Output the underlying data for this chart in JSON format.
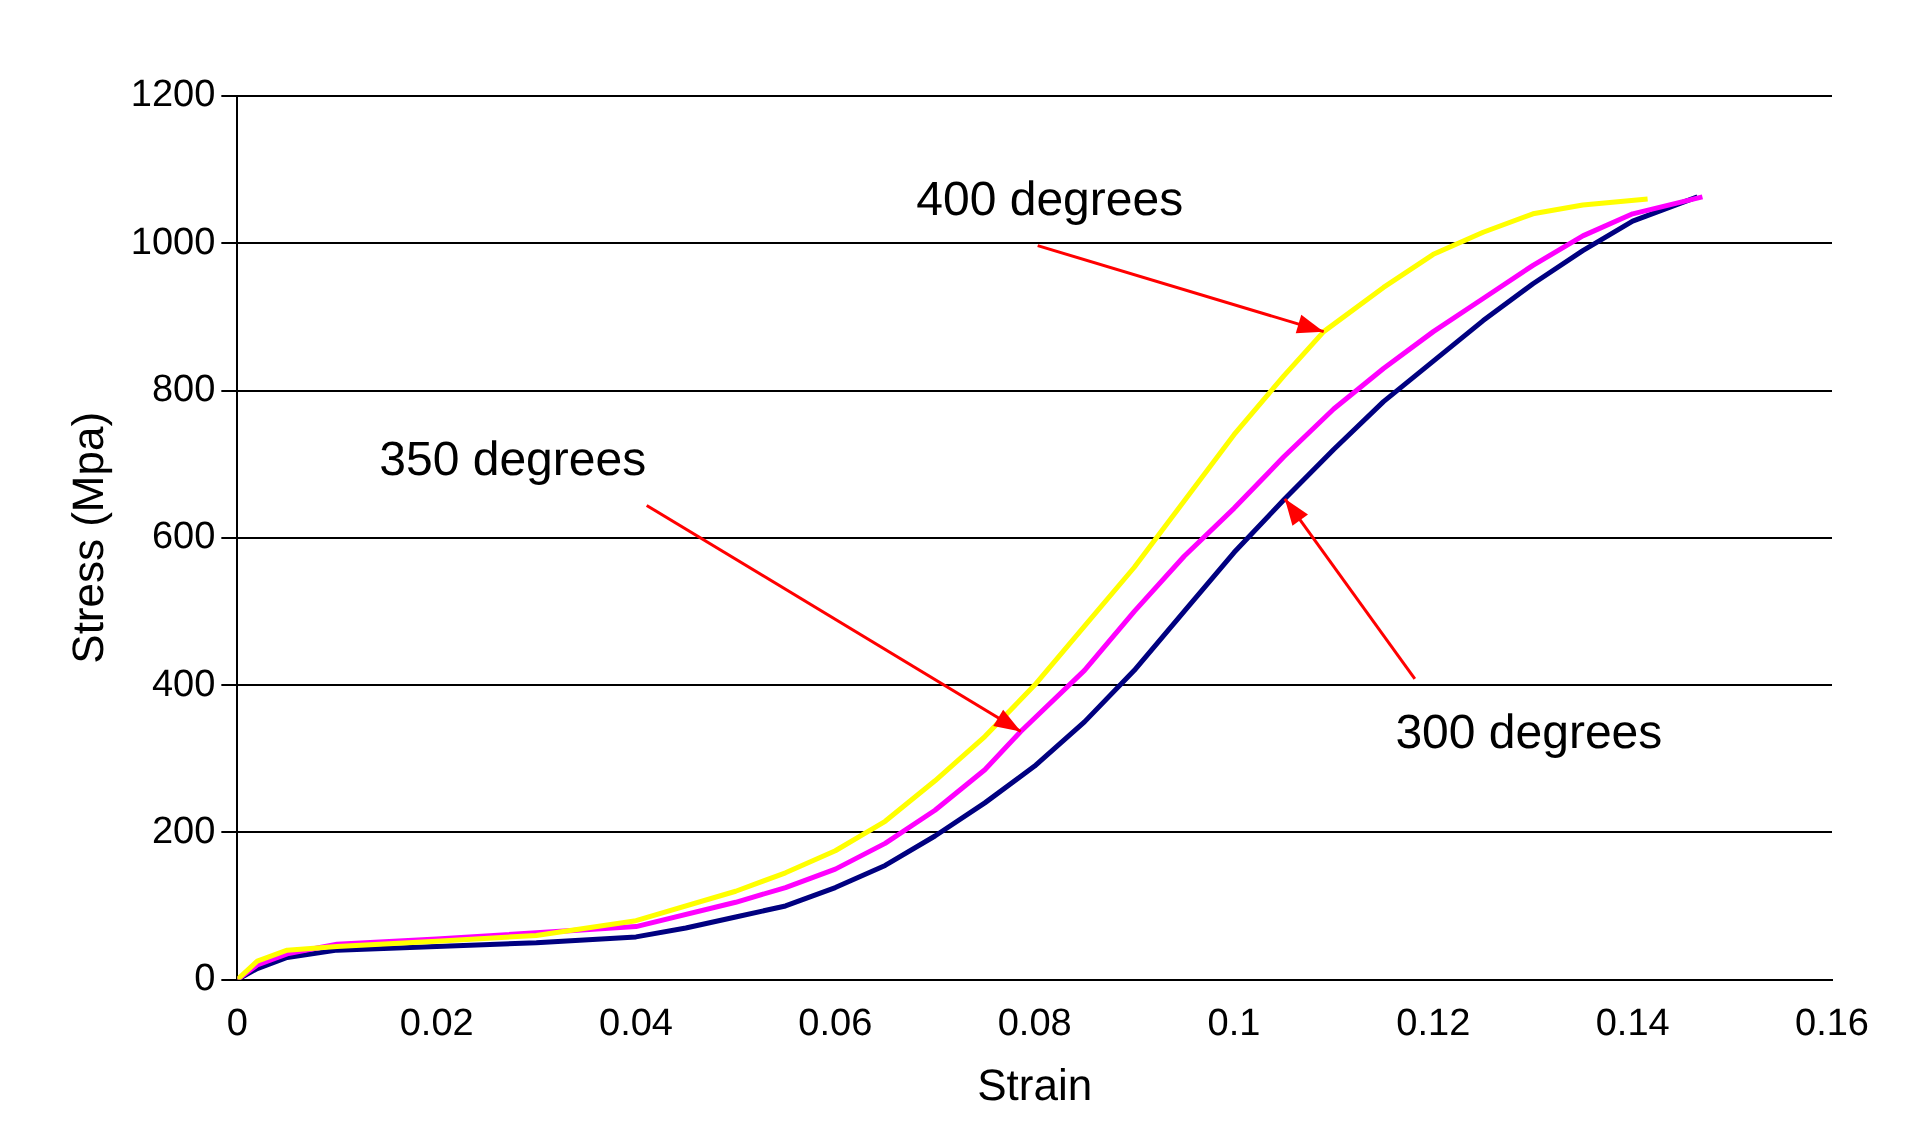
{
  "chart_data": {
    "type": "line",
    "xlabel": "Strain",
    "ylabel": "Stress (Mpa)",
    "xlim": [
      0,
      0.16
    ],
    "xticks": [
      0,
      0.02,
      0.04,
      0.06,
      0.08,
      0.1,
      0.12,
      0.14,
      0.16
    ],
    "ylim": [
      0,
      1200
    ],
    "yticks": [
      0,
      200,
      400,
      600,
      800,
      1000,
      1200
    ],
    "grid": "y",
    "legend": false,
    "marker": "none",
    "line_style": "solid",
    "series": [
      {
        "color": "#ffff00",
        "x": [
          0,
          0.002,
          0.005,
          0.01,
          0.02,
          0.03,
          0.04,
          0.05,
          0.055,
          0.06,
          0.065,
          0.07,
          0.075,
          0.08,
          0.085,
          0.09,
          0.095,
          0.1,
          0.105,
          0.109,
          0.115,
          0.12,
          0.125,
          0.13,
          0.135,
          0.1415
        ],
        "values": [
          0,
          25,
          40,
          45,
          52,
          60,
          80,
          120,
          145,
          175,
          215,
          270,
          330,
          400,
          480,
          560,
          650,
          740,
          820,
          880,
          940,
          985,
          1015,
          1040,
          1052,
          1060
        ]
      },
      {
        "color": "#ff00ff",
        "x": [
          0,
          0.002,
          0.005,
          0.01,
          0.02,
          0.03,
          0.04,
          0.05,
          0.055,
          0.06,
          0.065,
          0.07,
          0.075,
          0.0786,
          0.085,
          0.09,
          0.095,
          0.1,
          0.105,
          0.11,
          0.115,
          0.12,
          0.125,
          0.13,
          0.135,
          0.14,
          0.147
        ],
        "values": [
          0,
          20,
          35,
          48,
          55,
          null,
          72,
          105,
          125,
          150,
          185,
          230,
          285,
          337,
          420,
          500,
          575,
          640,
          710,
          775,
          830,
          880,
          925,
          970,
          1010,
          1040,
          1063
        ]
      },
      {
        "color": "#000080",
        "x": [
          0,
          0.002,
          0.005,
          0.01,
          0.02,
          0.03,
          0.04,
          0.045,
          0.05,
          0.055,
          0.06,
          0.065,
          0.07,
          0.075,
          0.08,
          0.085,
          0.09,
          0.095,
          0.1,
          0.1051,
          0.11,
          0.115,
          0.12,
          0.125,
          0.13,
          0.135,
          0.14,
          0.1465
        ],
        "values": [
          0,
          15,
          30,
          40,
          45,
          50,
          58,
          70,
          85,
          100,
          125,
          155,
          195,
          240,
          290,
          350,
          420,
          500,
          580,
          653,
          720,
          785,
          840,
          895,
          945,
          990,
          1030,
          1063
        ]
      }
    ],
    "annotations": [
      {
        "text": "400 degrees",
        "x": 0.109,
        "y": 880
      },
      {
        "text": "350 degrees",
        "x": 0.0786,
        "y": 337
      },
      {
        "text": "300 degrees",
        "x": 0.1051,
        "y": 653
      }
    ]
  }
}
